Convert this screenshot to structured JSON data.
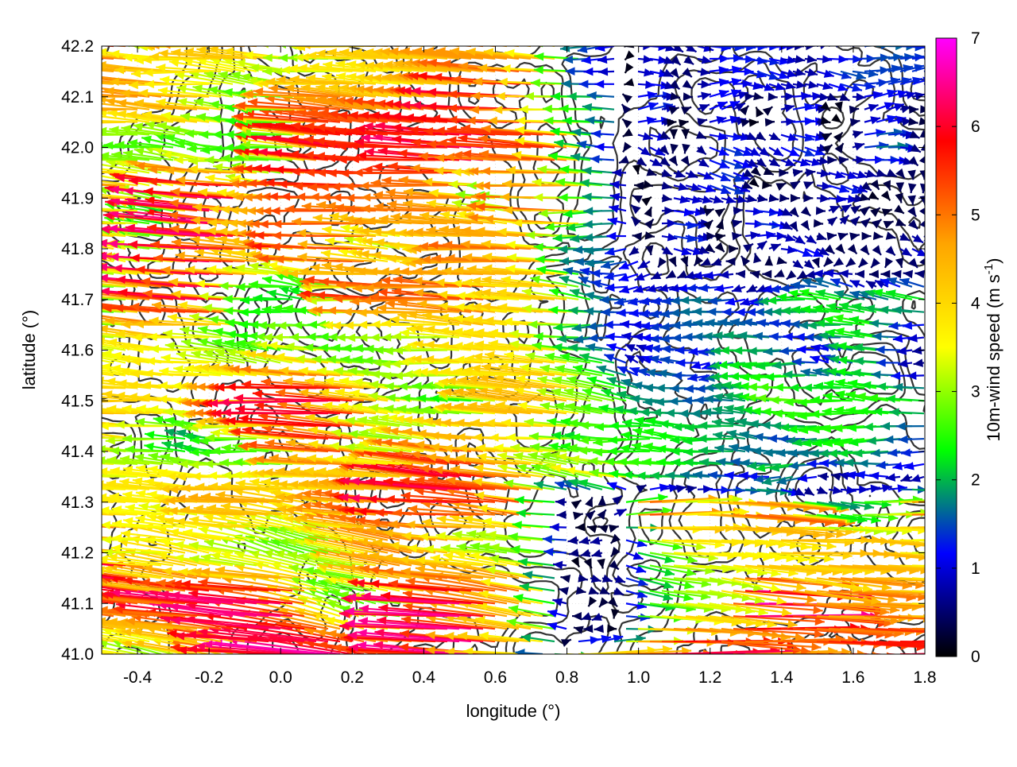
{
  "chart_data": {
    "type": "vector_field",
    "xlabel": "longitude (°)",
    "ylabel": "latitude (°)",
    "colorbar_label": "10m-wind speed (m s",
    "colorbar_label_sup": "-1",
    "colorbar_label_end": ")",
    "xlim": [
      -0.5,
      1.8
    ],
    "ylim": [
      41.0,
      42.2
    ],
    "x_ticks": [
      {
        "value": -0.4,
        "label": "-0.4"
      },
      {
        "value": -0.2,
        "label": "-0.2"
      },
      {
        "value": 0.0,
        "label": "0.0"
      },
      {
        "value": 0.2,
        "label": "0.2"
      },
      {
        "value": 0.4,
        "label": "0.4"
      },
      {
        "value": 0.6,
        "label": "0.6"
      },
      {
        "value": 0.8,
        "label": "0.8"
      },
      {
        "value": 1.0,
        "label": "1.0"
      },
      {
        "value": 1.2,
        "label": "1.2"
      },
      {
        "value": 1.4,
        "label": "1.4"
      },
      {
        "value": 1.6,
        "label": "1.6"
      },
      {
        "value": 1.8,
        "label": "1.8"
      }
    ],
    "y_ticks": [
      {
        "value": 41.0,
        "label": "41.0"
      },
      {
        "value": 41.1,
        "label": "41.1"
      },
      {
        "value": 41.2,
        "label": "41.2"
      },
      {
        "value": 41.3,
        "label": "41.3"
      },
      {
        "value": 41.4,
        "label": "41.4"
      },
      {
        "value": 41.5,
        "label": "41.5"
      },
      {
        "value": 41.6,
        "label": "41.6"
      },
      {
        "value": 41.7,
        "label": "41.7"
      },
      {
        "value": 41.8,
        "label": "41.8"
      },
      {
        "value": 41.9,
        "label": "41.9"
      },
      {
        "value": 42.0,
        "label": "42.0"
      },
      {
        "value": 42.1,
        "label": "42.1"
      },
      {
        "value": 42.2,
        "label": "42.2"
      }
    ],
    "colorbar_range": [
      0,
      7
    ],
    "colorbar_ticks": [
      {
        "value": 0,
        "label": "0"
      },
      {
        "value": 1,
        "label": "1"
      },
      {
        "value": 2,
        "label": "2"
      },
      {
        "value": 3,
        "label": "3"
      },
      {
        "value": 4,
        "label": "4"
      },
      {
        "value": 5,
        "label": "5"
      },
      {
        "value": 6,
        "label": "6"
      },
      {
        "value": 7,
        "label": "7"
      }
    ],
    "colormap": [
      "#000000",
      "#0000ff",
      "#00ff00",
      "#ffff00",
      "#ffa500",
      "#ff0000",
      "#ff00ff"
    ],
    "grid": true,
    "wind_field": {
      "description": "wind vectors sampled on a regular lon/lat grid, u/v in m s-1",
      "lon_step": 0.0333,
      "lat_step": 0.025,
      "regions": [
        {
          "lon": [
            -0.5,
            0.9
          ],
          "lat": [
            41.35,
            42.2
          ],
          "u": -4.2,
          "v": 0.3
        },
        {
          "lon": [
            0.0,
            0.9
          ],
          "lat": [
            41.05,
            41.35
          ],
          "u": -4.5,
          "v": 0.6
        },
        {
          "lon": [
            0.9,
            1.8
          ],
          "lat": [
            41.75,
            42.2
          ],
          "u": 0.8,
          "v": 0.0
        },
        {
          "lon": [
            0.9,
            1.8
          ],
          "lat": [
            41.35,
            41.75
          ],
          "u": -1.8,
          "v": 0.1
        },
        {
          "lon": [
            0.85,
            1.8
          ],
          "lat": [
            41.0,
            41.3
          ],
          "u": 4.5,
          "v": -0.2
        }
      ]
    },
    "contour_color": "#333333"
  }
}
